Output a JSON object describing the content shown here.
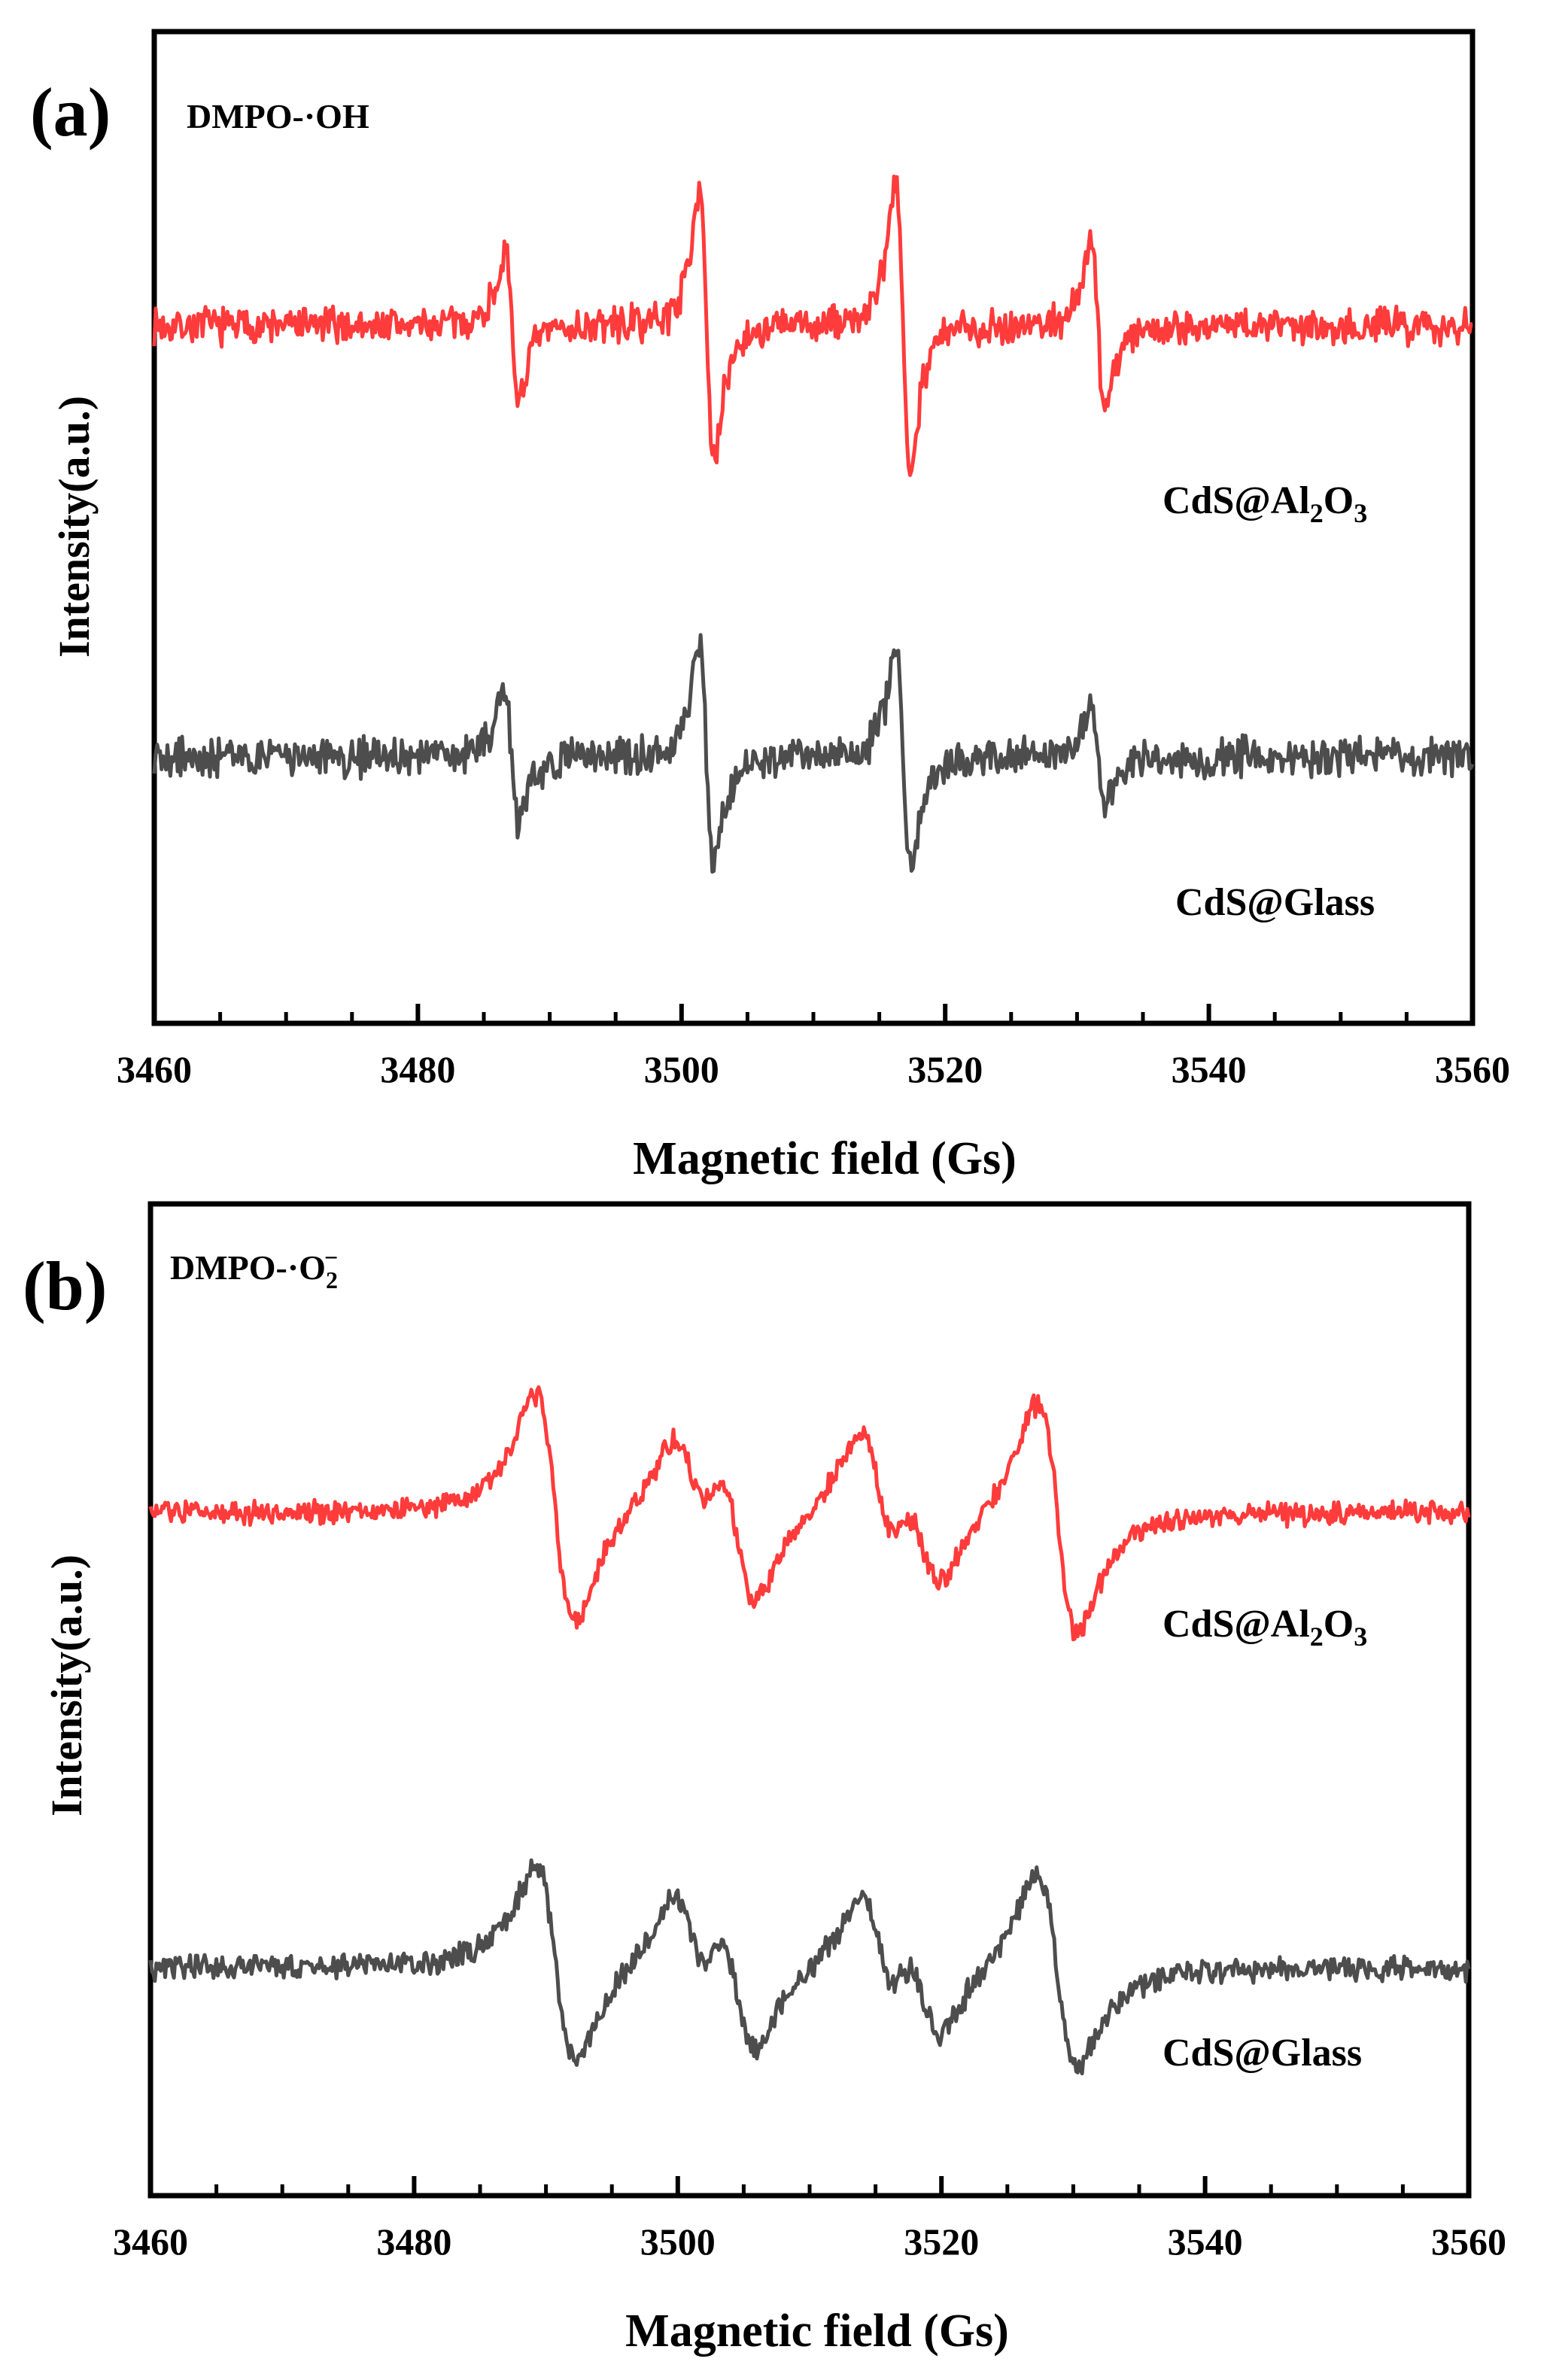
{
  "chart_data": [
    {
      "type": "line",
      "panel_label": "(a)",
      "annotation": {
        "base": "DMPO-·OH",
        "sub": "",
        "sup": ""
      },
      "xlabel": "Magnetic field (Gs)",
      "ylabel": "Intensity(a.u.)",
      "xlim": [
        3460,
        3560
      ],
      "ylim": [
        -3.8,
        1.6
      ],
      "x_ticks": [
        3460,
        3480,
        3500,
        3520,
        3540,
        3560
      ],
      "x_tick_labels": [
        "3460",
        "3480",
        "3500",
        "3520",
        "3540",
        "3560"
      ],
      "lineshape": {
        "form": "derivative",
        "width": 0.55
      },
      "series": [
        {
          "name": "CdS@Al2O3",
          "label_parts": [
            "CdS@Al",
            "2",
            "O",
            "3"
          ],
          "color": "#ff3b3b",
          "baseline": 0,
          "noise": 0.08,
          "seed": 7,
          "peaks": [
            {
              "x": 3487.1,
              "amp": 0.72
            },
            {
              "x": 3501.9,
              "amp": 1.42
            },
            {
              "x": 3516.8,
              "amp": 1.43
            },
            {
              "x": 3531.6,
              "amp": 0.8
            }
          ]
        },
        {
          "name": "CdS@Glass",
          "label_parts": [
            "CdS@Glass",
            "",
            "",
            ""
          ],
          "color": "#4d4d4d",
          "baseline": -2.35,
          "noise": 0.085,
          "seed": 19,
          "peaks": [
            {
              "x": 3487.1,
              "amp": 0.68
            },
            {
              "x": 3501.9,
              "amp": 1.15
            },
            {
              "x": 3516.8,
              "amp": 1.13
            },
            {
              "x": 3531.6,
              "amp": 0.5
            }
          ]
        }
      ]
    },
    {
      "type": "line",
      "panel_label": "(b)",
      "annotation": {
        "base": "DMPO-·O",
        "sub": "2",
        "sup": "−"
      },
      "xlabel": "Magnetic field (Gs)",
      "ylabel": "Intensity(a.u.)",
      "xlim": [
        3460,
        3560
      ],
      "ylim": [
        -4.2,
        1.9
      ],
      "x_ticks": [
        3460,
        3480,
        3500,
        3520,
        3540,
        3560
      ],
      "x_tick_labels": [
        "3460",
        "3480",
        "3500",
        "3520",
        "3540",
        "3560"
      ],
      "lineshape": {
        "form": "derivative",
        "width": 1.5
      },
      "series": [
        {
          "name": "CdS@Al2O3",
          "label_parts": [
            "CdS@Al",
            "2",
            "O",
            "3"
          ],
          "color": "#ff3b3b",
          "baseline": 0,
          "noise": 0.055,
          "seed": 31,
          "peaks": [
            {
              "x": 3490.7,
              "amp": 1.33
            },
            {
              "x": 3501.0,
              "amp": 0.62
            },
            {
              "x": 3504.5,
              "amp": 0.9
            },
            {
              "x": 3515.2,
              "amp": 0.8
            },
            {
              "x": 3518.6,
              "amp": 0.62
            },
            {
              "x": 3528.8,
              "amp": 1.34
            }
          ]
        },
        {
          "name": "CdS@Glass",
          "label_parts": [
            "CdS@Glass",
            "",
            "",
            ""
          ],
          "color": "#4d4d4d",
          "baseline": -2.8,
          "noise": 0.06,
          "seed": 43,
          "peaks": [
            {
              "x": 3490.7,
              "amp": 1.13
            },
            {
              "x": 3501.0,
              "amp": 0.6
            },
            {
              "x": 3504.5,
              "amp": 0.8
            },
            {
              "x": 3515.2,
              "amp": 0.68
            },
            {
              "x": 3518.6,
              "amp": 0.6
            },
            {
              "x": 3528.8,
              "amp": 1.13
            }
          ]
        }
      ]
    }
  ]
}
